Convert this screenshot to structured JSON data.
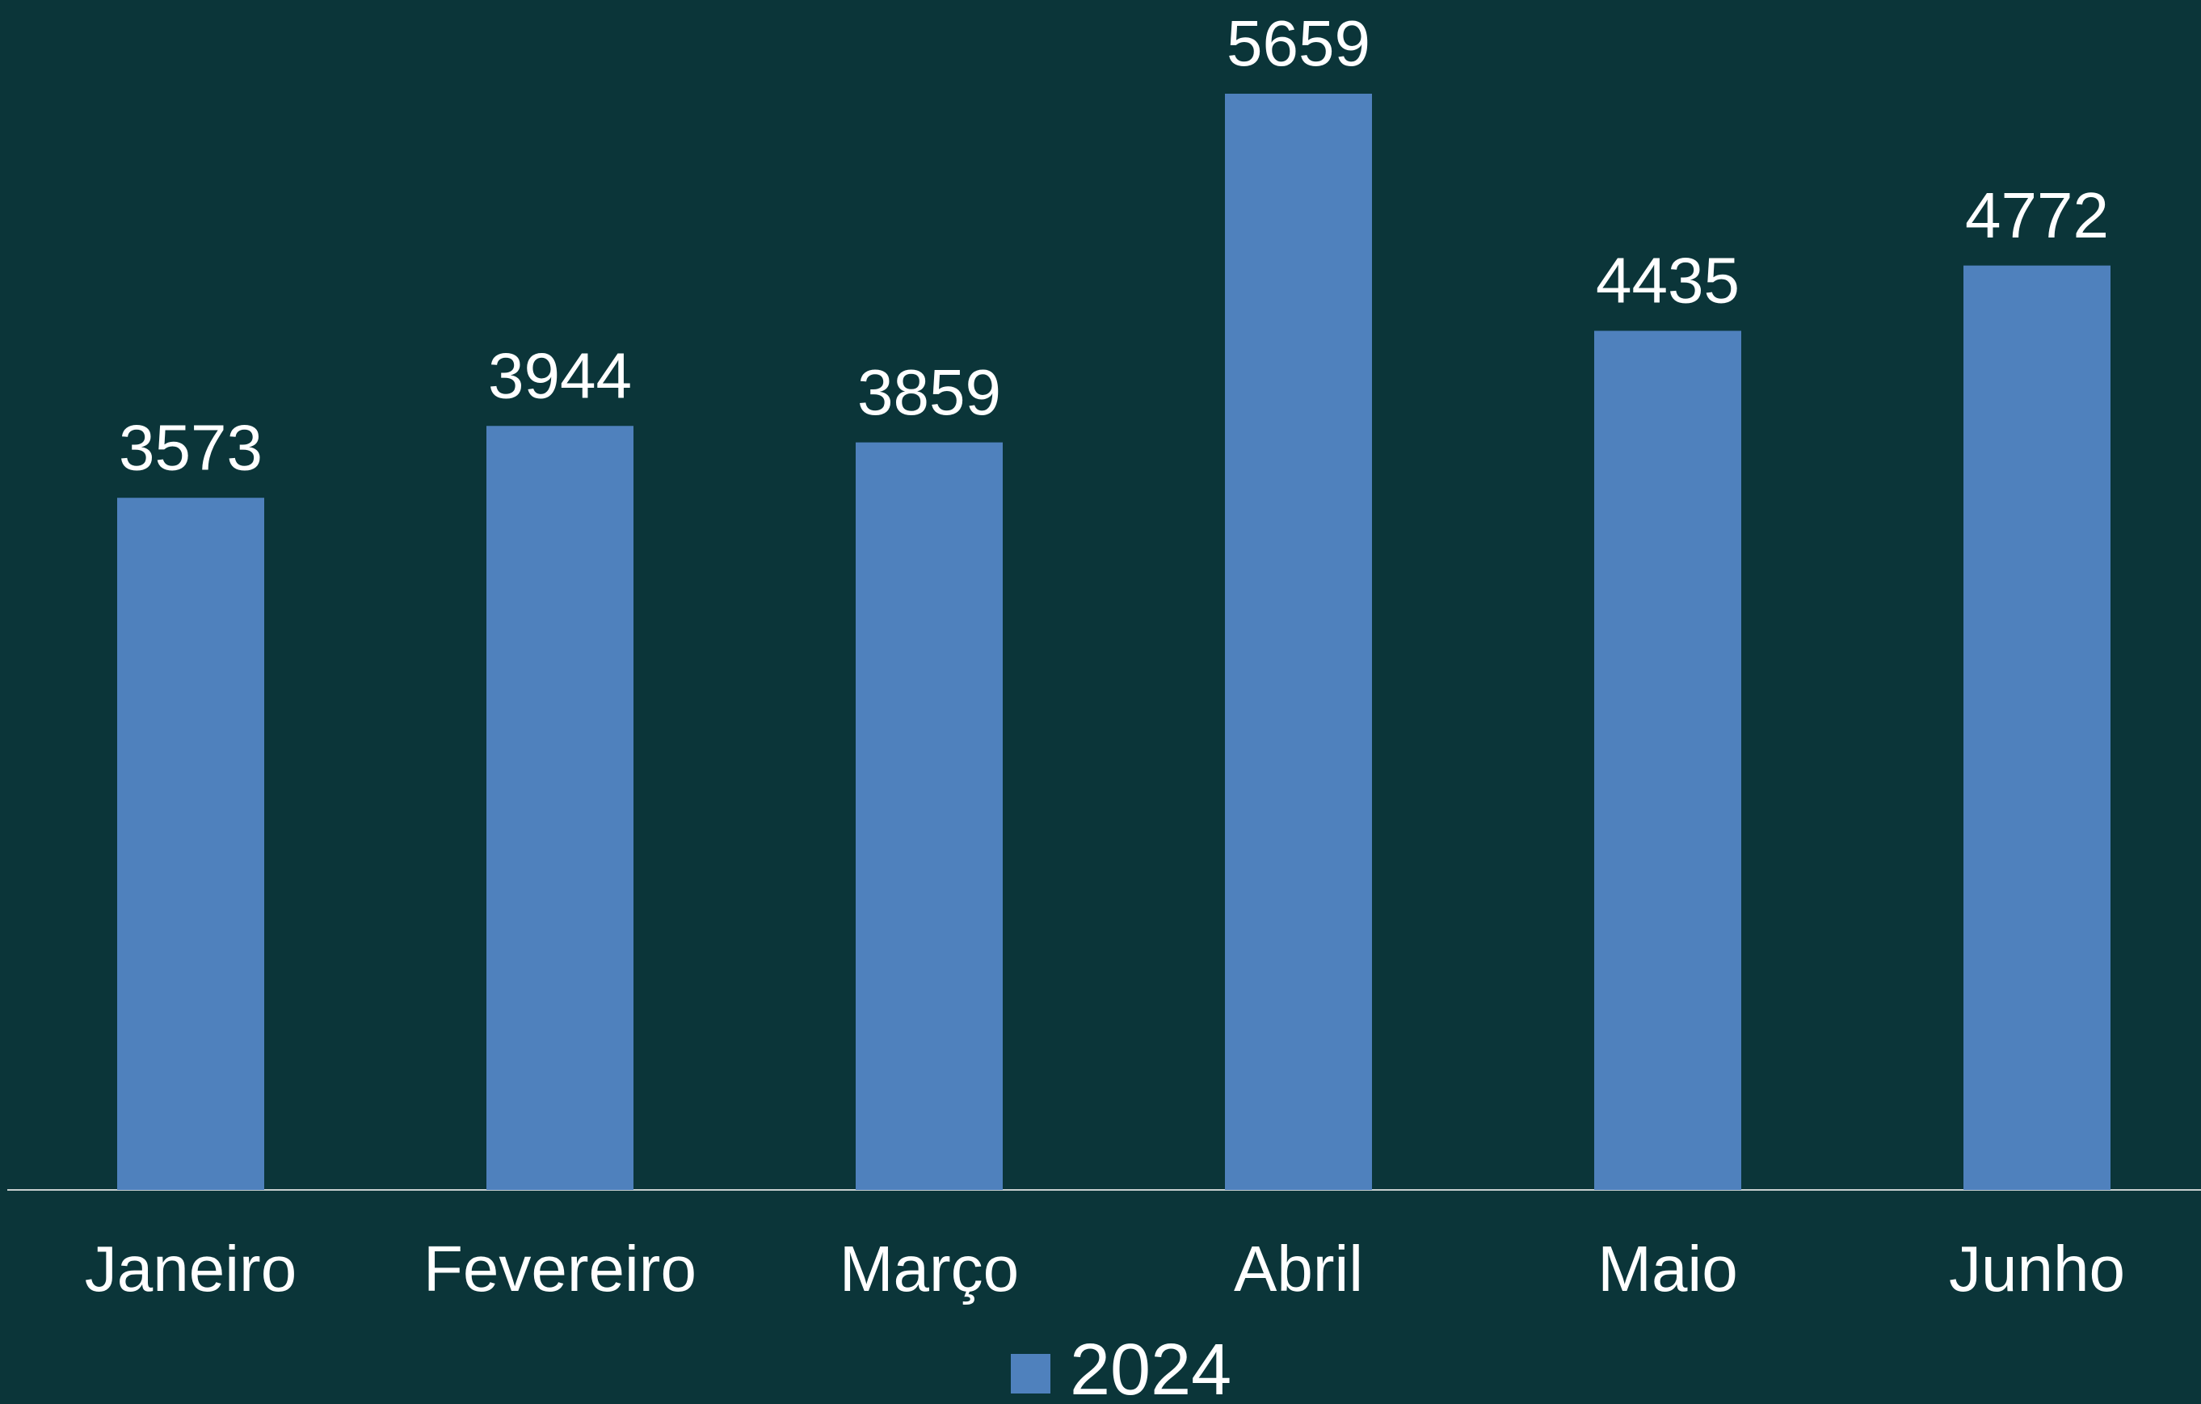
{
  "chart_data": {
    "type": "bar",
    "categories": [
      "Janeiro",
      "Fevereiro",
      "Março",
      "Abril",
      "Maio",
      "Junho"
    ],
    "series": [
      {
        "name": "2024",
        "color": "#4f81bd",
        "values": [
          3573,
          3944,
          3859,
          5659,
          4435,
          4772
        ]
      }
    ],
    "legend": "bottom"
  }
}
